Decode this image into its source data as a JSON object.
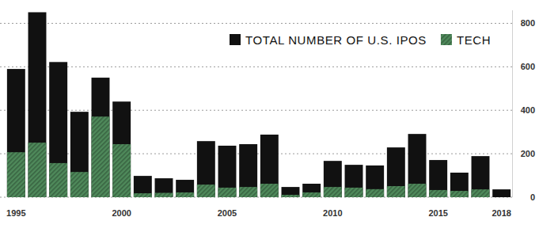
{
  "chart_data": {
    "type": "bar",
    "categories": [
      "1995",
      null,
      null,
      null,
      null,
      "2000",
      null,
      null,
      null,
      null,
      "2005",
      null,
      null,
      null,
      null,
      "2010",
      null,
      null,
      null,
      null,
      "2015",
      null,
      null,
      "2018"
    ],
    "series": [
      {
        "name": "TOTAL NUMBER OF U.S. IPOS",
        "color": "#111111",
        "values": [
          590,
          851,
          622,
          393,
          550,
          440,
          98,
          87,
          80,
          258,
          237,
          244,
          288,
          47,
          62,
          167,
          149,
          146,
          229,
          291,
          171,
          113,
          189,
          36
        ]
      },
      {
        "name": "TECH",
        "color": "#4f8a5b",
        "values": [
          207,
          251,
          157,
          116,
          371,
          244,
          18,
          20,
          22,
          58,
          44,
          47,
          62,
          11,
          22,
          47,
          44,
          37,
          51,
          62,
          33,
          29,
          36,
          null
        ]
      }
    ],
    "ylim": [
      0,
      860
    ],
    "yticks": [
      0,
      200,
      400,
      600,
      800
    ],
    "grid": true,
    "legend": "top-right",
    "stacked": false
  }
}
